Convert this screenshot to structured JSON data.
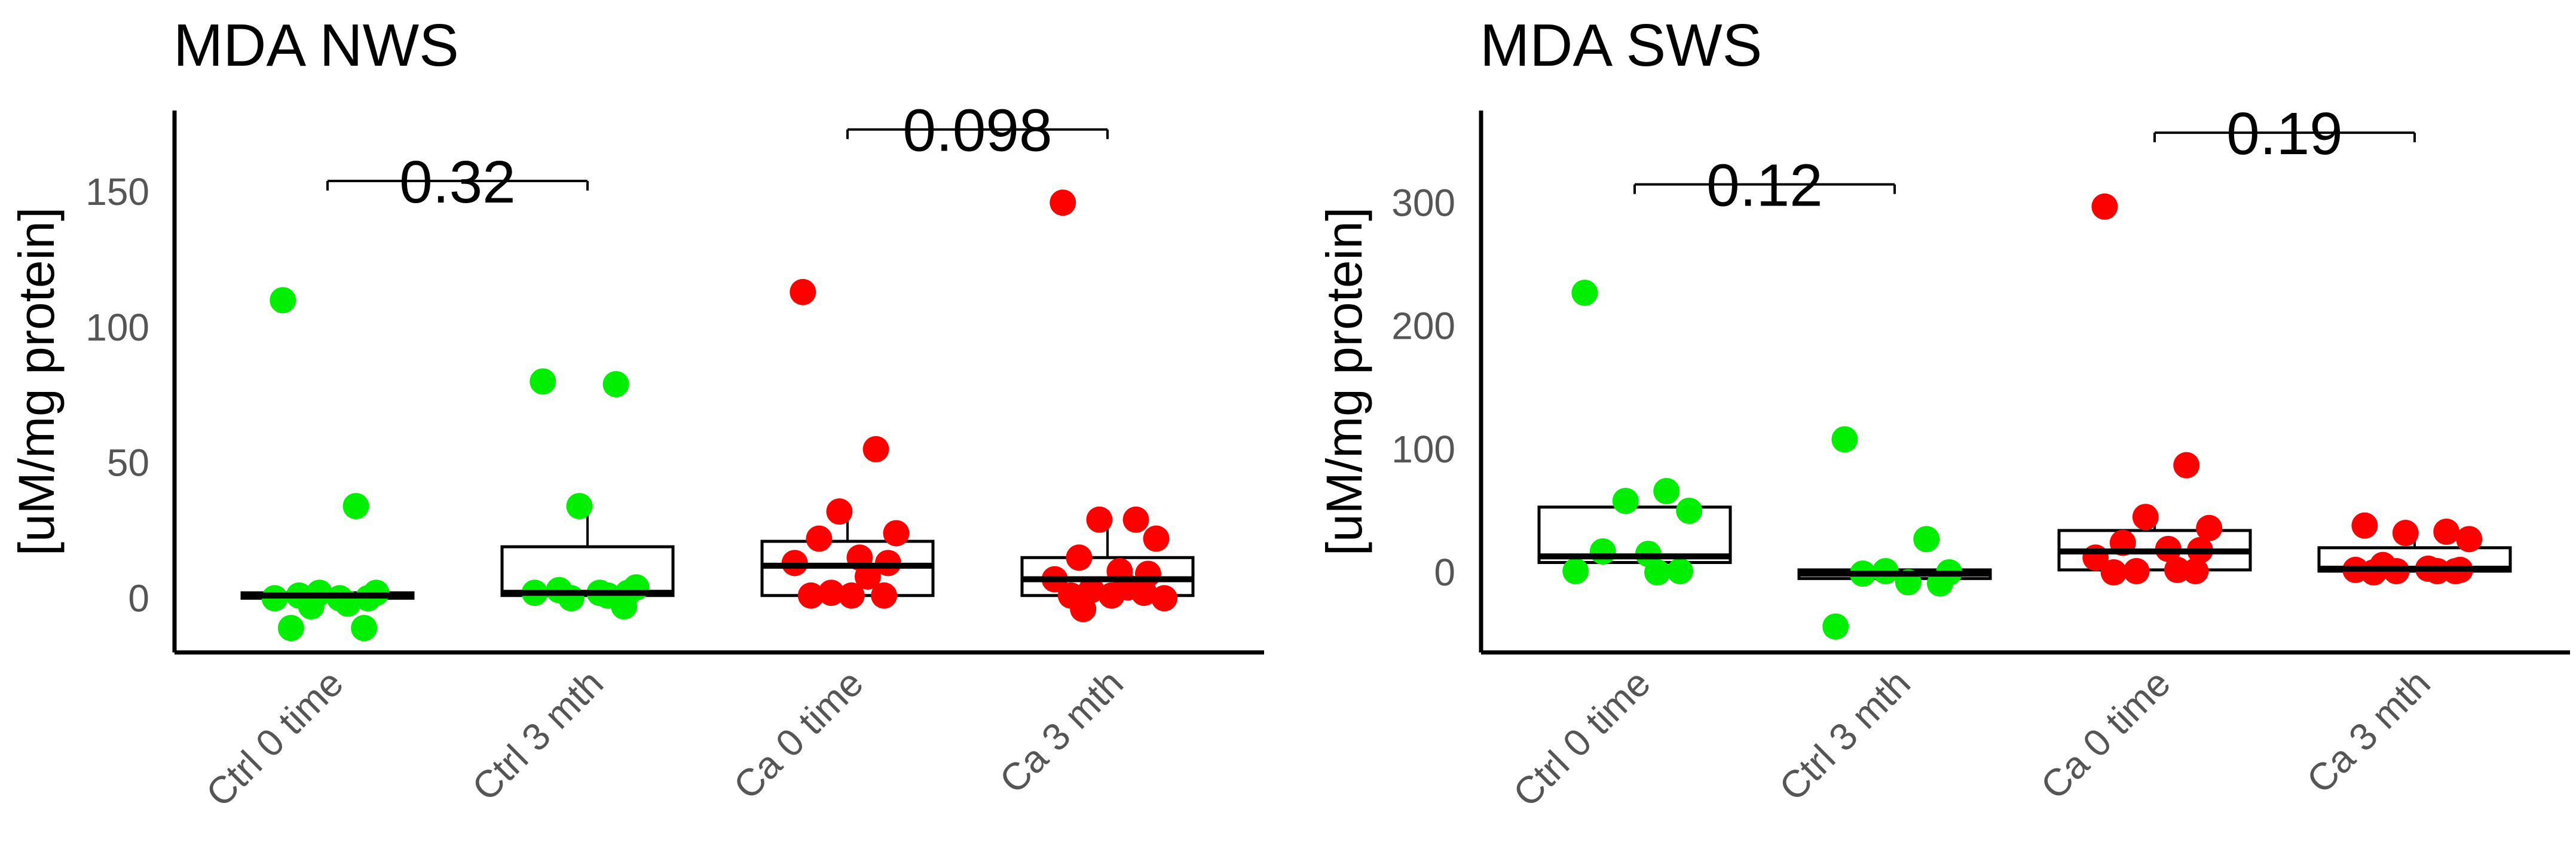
{
  "chart_data": [
    {
      "type": "box+jitter",
      "title": "MDA NWS",
      "ylabel": "[uM/mg protein]",
      "xlabel": "",
      "ylim": [
        -20,
        180
      ],
      "yticks": [
        0,
        50,
        100,
        150
      ],
      "categories": [
        "Ctrl 0 time",
        "Ctrl 3 mth",
        "Ca 0 time",
        "Ca 3 mth"
      ],
      "colors": [
        "#00ee00",
        "#00ee00",
        "#ff0000",
        "#ff0000"
      ],
      "boxes": [
        {
          "q1": 0,
          "median": 1,
          "q3": 2,
          "whisker_low": 0,
          "whisker_high": 2
        },
        {
          "q1": 1,
          "median": 2,
          "q3": 19,
          "whisker_low": 1,
          "whisker_high": 33
        },
        {
          "q1": 1,
          "median": 12,
          "q3": 21,
          "whisker_low": 1,
          "whisker_high": 32
        },
        {
          "q1": 1,
          "median": 7,
          "q3": 15,
          "whisker_low": 1,
          "whisker_high": 28
        }
      ],
      "points": [
        [
          110,
          34,
          2,
          2,
          1,
          0,
          0,
          0,
          -2,
          -3,
          -11,
          -11
        ],
        [
          80,
          79,
          34,
          4,
          3,
          2,
          2,
          2,
          1,
          0,
          -3
        ],
        [
          113,
          55,
          32,
          24,
          22,
          15,
          13,
          13,
          8,
          2,
          1,
          1,
          1
        ],
        [
          146,
          29,
          29,
          22,
          15,
          10,
          9,
          7,
          4,
          3,
          2,
          1,
          1,
          0,
          -4
        ]
      ],
      "comparisons": [
        {
          "groups": [
            "Ctrl 0 time",
            "Ctrl 3 mth"
          ],
          "y": 154,
          "label": "0.32"
        },
        {
          "groups": [
            "Ca 0 time",
            "Ca 3 mth"
          ],
          "y": 173,
          "label": "0.098"
        }
      ]
    },
    {
      "type": "box+jitter",
      "title": "MDA SWS",
      "ylabel": "[uM/mg protein]",
      "xlabel": "",
      "ylim": [
        -65,
        375
      ],
      "yticks": [
        0,
        100,
        200,
        300
      ],
      "categories": [
        "Ctrl 0 time",
        "Ctrl 3 mth",
        "Ca 0 time",
        "Ca 3 mth"
      ],
      "colors": [
        "#00ee00",
        "#00ee00",
        "#ff0000",
        "#ff0000"
      ],
      "boxes": [
        {
          "q1": 8,
          "median": 13,
          "q3": 53,
          "whisker_low": 8,
          "whisker_high": 62
        },
        {
          "q1": -5,
          "median": -1,
          "q3": 2,
          "whisker_low": -5,
          "whisker_high": 2
        },
        {
          "q1": 2,
          "median": 17,
          "q3": 34,
          "whisker_low": 2,
          "whisker_high": 45
        },
        {
          "q1": 1,
          "median": 3,
          "q3": 20,
          "whisker_low": 1,
          "whisker_high": 38
        }
      ],
      "points": [
        [
          227,
          66,
          58,
          50,
          17,
          15,
          1,
          1,
          0
        ],
        [
          108,
          27,
          1,
          0,
          -1,
          -8,
          -9,
          -44
        ],
        [
          297,
          87,
          45,
          36,
          24,
          19,
          18,
          12,
          2,
          1,
          1,
          0
        ],
        [
          38,
          33,
          32,
          27,
          6,
          3,
          2,
          2,
          1,
          1,
          1,
          0
        ]
      ],
      "comparisons": [
        {
          "groups": [
            "Ctrl 0 time",
            "Ctrl 3 mth"
          ],
          "y": 315,
          "label": "0.12"
        },
        {
          "groups": [
            "Ca 0 time",
            "Ca 3 mth"
          ],
          "y": 357,
          "label": "0.19"
        }
      ]
    }
  ]
}
